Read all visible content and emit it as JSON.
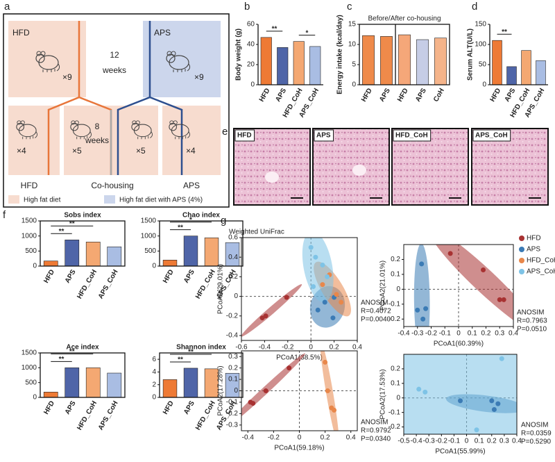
{
  "panel_labels": [
    "a",
    "b",
    "c",
    "d",
    "e",
    "f",
    "g"
  ],
  "schematic": {
    "hfd_group": "HFD",
    "hfd_n": "×9",
    "duration1": 12,
    "duration1_unit": "weeks",
    "aps_group": "APS",
    "aps_n": "×9",
    "split_n": [
      "×4",
      "×5",
      "×5",
      "×4"
    ],
    "duration2": 8,
    "duration2_unit": "weeks",
    "groups": [
      "HFD",
      "Co-housing",
      "APS"
    ],
    "legend": [
      "High fat diet",
      "High fat diet with APS (4%)"
    ]
  },
  "histology": {
    "labels": [
      "HFD",
      "APS",
      "HFD_CoH",
      "APS_CoH"
    ]
  },
  "chart_data": [
    {
      "type": "bar",
      "ylabel": "Body weight (g)",
      "categories": [
        "HFD",
        "APS",
        "HFD_CoH",
        "APS_CoH"
      ],
      "values": [
        47,
        37,
        43,
        38
      ],
      "colors": [
        "#ee7a35",
        "#4f65a8",
        "#f4a872",
        "#a9bde3"
      ],
      "ylim": [
        0,
        60
      ],
      "yticks": [
        0,
        20,
        40,
        60
      ],
      "significance": [
        {
          "text": "**",
          "pair": [
            0,
            1
          ]
        },
        {
          "text": "*",
          "pair": [
            2,
            3
          ]
        }
      ]
    },
    {
      "type": "bar",
      "title": "Before/After co-housing",
      "ylabel": "Energy intake (kcal/day)",
      "categories": [
        "HFD",
        "APS",
        "HFD",
        "APS",
        "CoH"
      ],
      "values": [
        12.2,
        12.0,
        12.4,
        11.2,
        11.6
      ],
      "colors": [
        "#ef8a4a",
        "#ef8a4a",
        "#f5a779",
        "#c6cde6",
        "#f5b48a"
      ],
      "ylim": [
        0,
        15
      ],
      "yticks": [
        0,
        5,
        10,
        15
      ],
      "frame": true
    },
    {
      "type": "bar",
      "ylabel": "Serum ALT(U/L)",
      "categories": [
        "HFD",
        "APS",
        "HFD_CoH",
        "APS_CoH"
      ],
      "values": [
        110,
        45,
        85,
        60
      ],
      "colors": [
        "#ee7a35",
        "#4f65a8",
        "#f4a872",
        "#a9bde3"
      ],
      "ylim": [
        0,
        150
      ],
      "yticks": [
        0,
        50,
        100,
        150
      ],
      "significance": [
        {
          "text": "**",
          "pair": [
            0,
            1
          ]
        }
      ]
    },
    {
      "type": "bar",
      "title": "Sobs index",
      "categories": [
        "HFD",
        "APS",
        "HFD_CoH",
        "APS_CoH"
      ],
      "values": [
        170,
        870,
        800,
        640
      ],
      "colors": [
        "#ee7a35",
        "#4f65a8",
        "#f4a872",
        "#a9bde3"
      ],
      "ylim": [
        0,
        1500
      ],
      "yticks": [
        0,
        500,
        1000,
        1500
      ],
      "frame": true,
      "significance": [
        {
          "text": "**",
          "pair": [
            0,
            1
          ]
        },
        {
          "text": "**",
          "pair": [
            0,
            2
          ]
        }
      ]
    },
    {
      "type": "bar",
      "title": "Chao index",
      "categories": [
        "HFD",
        "APS",
        "HFD_CoH",
        "APS_CoH"
      ],
      "values": [
        200,
        1000,
        940,
        780
      ],
      "colors": [
        "#ee7a35",
        "#4f65a8",
        "#f4a872",
        "#a9bde3"
      ],
      "ylim": [
        0,
        1500
      ],
      "yticks": [
        0,
        500,
        1000,
        1500
      ],
      "frame": true,
      "significance": [
        {
          "text": "**",
          "pair": [
            0,
            1
          ]
        },
        {
          "text": "*",
          "pair": [
            0,
            2
          ]
        }
      ]
    },
    {
      "type": "bar",
      "title": "Ace index",
      "categories": [
        "HFD",
        "APS",
        "HFD_CoH",
        "APS_CoH"
      ],
      "values": [
        180,
        1000,
        1000,
        820
      ],
      "colors": [
        "#ee7a35",
        "#4f65a8",
        "#f4a872",
        "#a9bde3"
      ],
      "ylim": [
        0,
        1500
      ],
      "yticks": [
        0,
        500,
        1000,
        1500
      ],
      "frame": true,
      "significance": [
        {
          "text": "**",
          "pair": [
            0,
            1
          ]
        },
        {
          "text": "**",
          "pair": [
            0,
            2
          ]
        }
      ]
    },
    {
      "type": "bar",
      "title": "Shannon index",
      "categories": [
        "HFD",
        "APS",
        "HFD_CoH",
        "APS_CoH"
      ],
      "values": [
        2.8,
        4.6,
        4.5,
        3.8
      ],
      "colors": [
        "#ee7a35",
        "#4f65a8",
        "#f4a872",
        "#a9bde3"
      ],
      "ylim": [
        0,
        7
      ],
      "yticks": [
        0,
        2,
        4,
        6
      ],
      "frame": true,
      "significance": [
        {
          "text": "**",
          "pair": [
            0,
            1
          ]
        },
        {
          "text": "**",
          "pair": [
            0,
            2
          ]
        }
      ]
    },
    {
      "type": "scatter",
      "title": "Weighted UniFrac",
      "xlabel": "PCoA1(38.5%)",
      "ylabel": "PCoA2(29.01%)",
      "xlim": [
        -0.6,
        0.4
      ],
      "xticks": [
        -0.6,
        -0.4,
        -0.2,
        0,
        0.2,
        0.4
      ],
      "ylim": [
        -0.45,
        0.6
      ],
      "yticks": [
        -0.4,
        -0.2,
        0,
        0.2,
        0.4,
        0.6
      ],
      "annotations": [
        "ANOSIM",
        "R=0.4072",
        "P=0.0040"
      ],
      "series": [
        {
          "name": "HFD",
          "color": "#a83232",
          "x": [
            -0.42,
            -0.39,
            -0.21
          ],
          "y": [
            -0.22,
            -0.2,
            -0.01
          ]
        },
        {
          "name": "APS",
          "color": "#3b7bb5",
          "x": [
            0.06,
            0.12,
            0.19,
            0.2
          ],
          "y": [
            -0.14,
            -0.06,
            -0.22,
            -0.01
          ]
        },
        {
          "name": "HFD_CoH",
          "color": "#e8874a",
          "x": [
            0.1,
            0.16,
            0.22,
            0.26
          ],
          "y": [
            0.12,
            0.22,
            0.02,
            -0.06
          ]
        },
        {
          "name": "APS_CoH",
          "color": "#7ec3e6",
          "x": [
            0.0,
            0.04,
            0.1,
            0.14,
            0.02
          ],
          "y": [
            0.5,
            0.4,
            0.32,
            0.2,
            0.1
          ]
        }
      ]
    },
    {
      "type": "scatter",
      "xlabel": "PCoA1(60.39%)",
      "ylabel": "PCoA2(21.01%)",
      "xlim": [
        -0.4,
        0.4
      ],
      "xticks": [
        -0.4,
        -0.3,
        -0.2,
        -0.1,
        0,
        0.1,
        0.2,
        0.3,
        0.4
      ],
      "ylim": [
        -0.25,
        0.3
      ],
      "yticks": [
        -0.2,
        -0.1,
        0,
        0.1,
        0.2
      ],
      "annotations": [
        "ANOSIM",
        "R=0.7963",
        "P=0.0510"
      ],
      "series": [
        {
          "name": "HFD",
          "color": "#a83232",
          "x": [
            -0.06,
            0.18,
            0.3,
            0.33
          ],
          "y": [
            0.24,
            0.13,
            -0.07,
            -0.07
          ]
        },
        {
          "name": "APS",
          "color": "#3b7bb5",
          "x": [
            -0.3,
            -0.27,
            -0.26,
            -0.24
          ],
          "y": [
            -0.14,
            0.17,
            -0.2,
            -0.13
          ]
        }
      ]
    },
    {
      "type": "scatter",
      "xlabel": "PCoA1(59.18%)",
      "ylabel": "PCoA2(17.28%)",
      "xlim": [
        -0.45,
        0.45
      ],
      "xticks": [
        -0.4,
        -0.2,
        0,
        0.2,
        0.4
      ],
      "ylim": [
        -0.35,
        0.35
      ],
      "yticks": [
        -0.3,
        -0.2,
        -0.1,
        0,
        0.1,
        0.2,
        0.3
      ],
      "annotations": [
        "ANOSIM",
        "R=0.9792",
        "P=0.0340"
      ],
      "series": [
        {
          "name": "HFD",
          "color": "#a83232",
          "x": [
            -0.38,
            -0.36,
            -0.26,
            -0.08
          ],
          "y": [
            -0.1,
            -0.11,
            0.0,
            0.2
          ]
        },
        {
          "name": "HFD_CoH",
          "color": "#e8874a",
          "x": [
            0.2,
            0.22,
            0.25,
            0.27
          ],
          "y": [
            0.25,
            0.0,
            -0.15,
            -0.17
          ]
        }
      ]
    },
    {
      "type": "scatter",
      "xlabel": "PCoA1(55.99%)",
      "ylabel": "PCoA2(17.53%)",
      "xlim": [
        -0.5,
        0.4
      ],
      "xticks": [
        -0.5,
        -0.4,
        -0.3,
        -0.2,
        -0.1,
        0,
        0.1,
        0.2,
        0.3,
        0.4
      ],
      "ylim": [
        -0.25,
        0.3
      ],
      "yticks": [
        -0.2,
        -0.1,
        0,
        0.1,
        0.2
      ],
      "annotations": [
        "ANOSIM",
        "R=0.0359",
        "P=0.5290"
      ],
      "series": [
        {
          "name": "APS",
          "color": "#3b7bb5",
          "x": [
            -0.05,
            0.2,
            0.25,
            0.22
          ],
          "y": [
            -0.02,
            -0.02,
            -0.04,
            -0.08
          ]
        },
        {
          "name": "APS_CoH",
          "color": "#7ec3e6",
          "x": [
            -0.38,
            -0.33,
            0.08,
            0.28
          ],
          "y": [
            0.06,
            0.04,
            -0.22,
            0.27
          ]
        }
      ]
    }
  ]
}
